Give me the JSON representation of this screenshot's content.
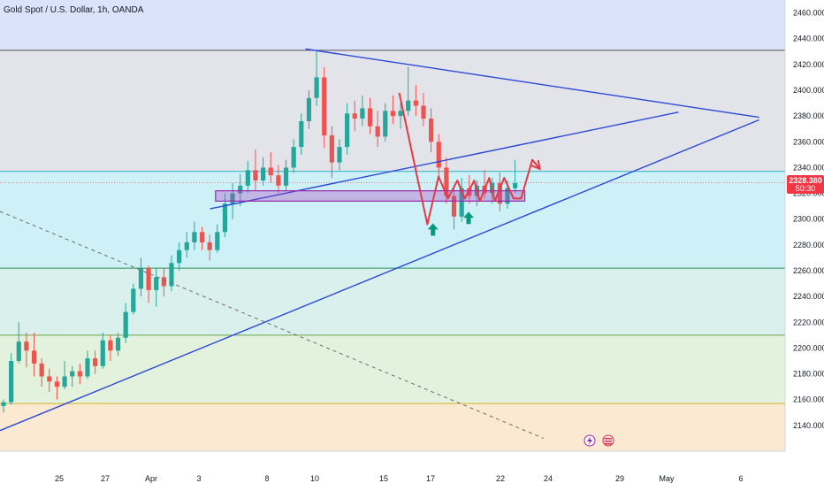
{
  "chart_data": {
    "type": "candlestick",
    "title": "Gold Spot / U.S. Dollar, 1h, OANDA",
    "ylim": [
      2120,
      2470
    ],
    "y_ticks": [
      "2460.000",
      "2440.000",
      "2420.000",
      "2400.000",
      "2380.000",
      "2360.000",
      "2340.000",
      "2320.000",
      "2300.000",
      "2280.000",
      "2260.000",
      "2240.000",
      "2220.000",
      "2200.000",
      "2180.000",
      "2160.000",
      "2140.000"
    ],
    "x_ticks": [
      "25",
      "27",
      "Apr",
      "3",
      "8",
      "10",
      "15",
      "17",
      "22",
      "24",
      "29",
      "May",
      "6"
    ],
    "last_price": "2328.380",
    "countdown": "50:30",
    "zones": [
      {
        "from": 2431,
        "to": 2470,
        "color": "#dbe3fb"
      },
      {
        "from": 2337,
        "to": 2431,
        "color": "#e3e4e9"
      },
      {
        "from": 2262,
        "to": 2337,
        "color": "#cdf1f7"
      },
      {
        "from": 2210,
        "to": 2262,
        "color": "#daf0ec"
      },
      {
        "from": 2157,
        "to": 2210,
        "color": "#e2f2dd"
      },
      {
        "from": 2120,
        "to": 2157,
        "color": "#fbe9d1"
      }
    ],
    "horizontal_levels": [
      {
        "value": 2431,
        "color": "#555555"
      },
      {
        "value": 2337,
        "color": "#2bb1c6"
      },
      {
        "value": 2262,
        "color": "#2e8f58"
      },
      {
        "value": 2210,
        "color": "#6aa04e"
      },
      {
        "value": 2157,
        "color": "#d5b22a"
      }
    ],
    "trendlines": [
      {
        "x1": 0.0,
        "y1": 2136,
        "x2": 40.5,
        "y2": 2377,
        "color": "#2a49d6"
      },
      {
        "x1": 11.2,
        "y1": 2308,
        "x2": 36.2,
        "y2": 2383,
        "color": "#2a49d6"
      },
      {
        "x1": 16.3,
        "y1": 2432,
        "x2": 40.5,
        "y2": 2379,
        "color": "#2a49d6"
      },
      {
        "x1": 0.0,
        "y1": 2306,
        "x2": 29.0,
        "y2": 2130,
        "color": "#6b6b6b",
        "dashed": true
      }
    ],
    "support_zone": {
      "x1": 11.5,
      "x2": 28.0,
      "y1": 2314,
      "y2": 2322,
      "color": "#9c27b0"
    },
    "projection_path": [
      [
        21.3,
        2398
      ],
      [
        22.8,
        2296
      ],
      [
        23.4,
        2333
      ],
      [
        23.9,
        2316
      ],
      [
        24.4,
        2330
      ],
      [
        24.8,
        2316
      ],
      [
        25.3,
        2330
      ],
      [
        25.6,
        2314
      ],
      [
        26.1,
        2332
      ],
      [
        26.4,
        2314
      ],
      [
        26.9,
        2332
      ],
      [
        27.4,
        2316
      ],
      [
        27.8,
        2316
      ],
      [
        28.4,
        2346
      ],
      [
        28.8,
        2339
      ]
    ],
    "arrows_up": [
      {
        "x": 23.1,
        "y": 2292
      },
      {
        "x": 25.0,
        "y": 2301
      }
    ],
    "series": [
      {
        "name": "XAUUSD",
        "candles": [
          [
            2155,
            2160,
            2150,
            2158
          ],
          [
            2158,
            2196,
            2156,
            2190
          ],
          [
            2190,
            2220,
            2188,
            2205
          ],
          [
            2205,
            2212,
            2185,
            2198
          ],
          [
            2198,
            2212,
            2178,
            2188
          ],
          [
            2188,
            2192,
            2170,
            2178
          ],
          [
            2178,
            2184,
            2166,
            2174
          ],
          [
            2174,
            2178,
            2160,
            2170
          ],
          [
            2170,
            2190,
            2168,
            2178
          ],
          [
            2178,
            2186,
            2170,
            2182
          ],
          [
            2182,
            2188,
            2172,
            2178
          ],
          [
            2178,
            2198,
            2176,
            2192
          ],
          [
            2192,
            2198,
            2180,
            2186
          ],
          [
            2186,
            2212,
            2184,
            2206
          ],
          [
            2206,
            2210,
            2190,
            2198
          ],
          [
            2198,
            2212,
            2194,
            2208
          ],
          [
            2208,
            2235,
            2204,
            2228
          ],
          [
            2228,
            2250,
            2226,
            2246
          ],
          [
            2246,
            2270,
            2240,
            2262
          ],
          [
            2262,
            2264,
            2235,
            2245
          ],
          [
            2245,
            2262,
            2232,
            2255
          ],
          [
            2255,
            2262,
            2240,
            2248
          ],
          [
            2248,
            2272,
            2244,
            2266
          ],
          [
            2266,
            2282,
            2260,
            2276
          ],
          [
            2276,
            2290,
            2270,
            2282
          ],
          [
            2282,
            2298,
            2276,
            2290
          ],
          [
            2290,
            2294,
            2276,
            2282
          ],
          [
            2282,
            2288,
            2268,
            2276
          ],
          [
            2276,
            2296,
            2274,
            2290
          ],
          [
            2290,
            2320,
            2286,
            2312
          ],
          [
            2312,
            2328,
            2300,
            2320
          ],
          [
            2320,
            2335,
            2310,
            2326
          ],
          [
            2326,
            2345,
            2320,
            2338
          ],
          [
            2338,
            2354,
            2322,
            2330
          ],
          [
            2330,
            2348,
            2326,
            2340
          ],
          [
            2340,
            2352,
            2328,
            2334
          ],
          [
            2334,
            2342,
            2320,
            2326
          ],
          [
            2326,
            2346,
            2322,
            2340
          ],
          [
            2340,
            2362,
            2336,
            2356
          ],
          [
            2356,
            2382,
            2350,
            2376
          ],
          [
            2376,
            2400,
            2370,
            2394
          ],
          [
            2394,
            2430,
            2388,
            2410
          ],
          [
            2410,
            2418,
            2355,
            2365
          ],
          [
            2365,
            2372,
            2332,
            2344
          ],
          [
            2344,
            2362,
            2338,
            2356
          ],
          [
            2356,
            2390,
            2350,
            2382
          ],
          [
            2382,
            2392,
            2368,
            2378
          ],
          [
            2378,
            2396,
            2372,
            2386
          ],
          [
            2386,
            2394,
            2366,
            2372
          ],
          [
            2372,
            2384,
            2356,
            2364
          ],
          [
            2364,
            2390,
            2360,
            2384
          ],
          [
            2384,
            2396,
            2374,
            2380
          ],
          [
            2380,
            2390,
            2370,
            2384
          ],
          [
            2384,
            2418,
            2380,
            2392
          ],
          [
            2392,
            2404,
            2380,
            2388
          ],
          [
            2388,
            2398,
            2372,
            2378
          ],
          [
            2378,
            2386,
            2352,
            2360
          ],
          [
            2360,
            2366,
            2332,
            2340
          ],
          [
            2340,
            2348,
            2312,
            2318
          ],
          [
            2318,
            2326,
            2292,
            2302
          ],
          [
            2302,
            2332,
            2298,
            2324
          ],
          [
            2324,
            2334,
            2312,
            2318
          ],
          [
            2318,
            2330,
            2310,
            2326
          ],
          [
            2326,
            2338,
            2316,
            2320
          ],
          [
            2320,
            2332,
            2312,
            2328
          ],
          [
            2328,
            2336,
            2306,
            2312
          ],
          [
            2312,
            2330,
            2308,
            2324
          ],
          [
            2324,
            2346,
            2320,
            2328
          ]
        ]
      }
    ]
  }
}
